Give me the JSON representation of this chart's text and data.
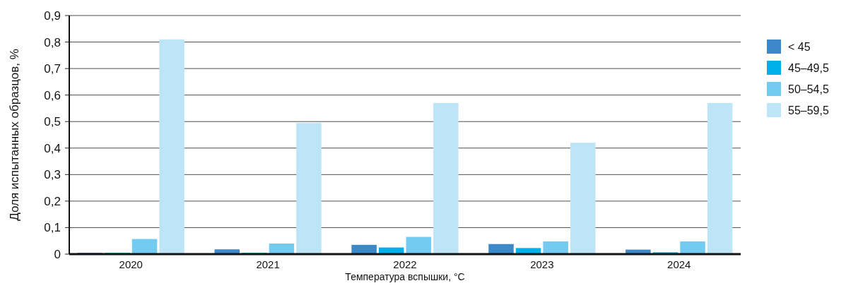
{
  "chart_data": {
    "type": "bar",
    "xlabel": "Температура вспышки, °C",
    "ylabel": "Доля испытанных образцов, %",
    "categories": [
      "2020",
      "2021",
      "2022",
      "2023",
      "2024"
    ],
    "series": [
      {
        "name": "< 45",
        "color": "#3d88c8",
        "values": [
          0.005,
          0.018,
          0.035,
          0.038,
          0.017
        ]
      },
      {
        "name": "45–49,5",
        "color": "#00b0e8",
        "values": [
          0.005,
          0.005,
          0.025,
          0.023,
          0.007
        ]
      },
      {
        "name": "50–54,5",
        "color": "#74cbf2",
        "values": [
          0.057,
          0.04,
          0.065,
          0.048,
          0.048
        ]
      },
      {
        "name": "55–59,5",
        "color": "#bee4f8",
        "values": [
          0.81,
          0.495,
          0.57,
          0.42,
          0.57
        ]
      }
    ],
    "ylim": [
      0,
      0.9
    ],
    "yticks": [
      {
        "value": 0,
        "label": "0"
      },
      {
        "value": 0.1,
        "label": "0,1"
      },
      {
        "value": 0.2,
        "label": "0,2"
      },
      {
        "value": 0.3,
        "label": "0,3"
      },
      {
        "value": 0.4,
        "label": "0,4"
      },
      {
        "value": 0.5,
        "label": "0,5"
      },
      {
        "value": 0.6,
        "label": "0,6"
      },
      {
        "value": 0.7,
        "label": "0,7"
      },
      {
        "value": 0.8,
        "label": "0,8"
      },
      {
        "value": 0.9,
        "label": "0,9"
      }
    ],
    "grid": "y",
    "legend": "right"
  }
}
